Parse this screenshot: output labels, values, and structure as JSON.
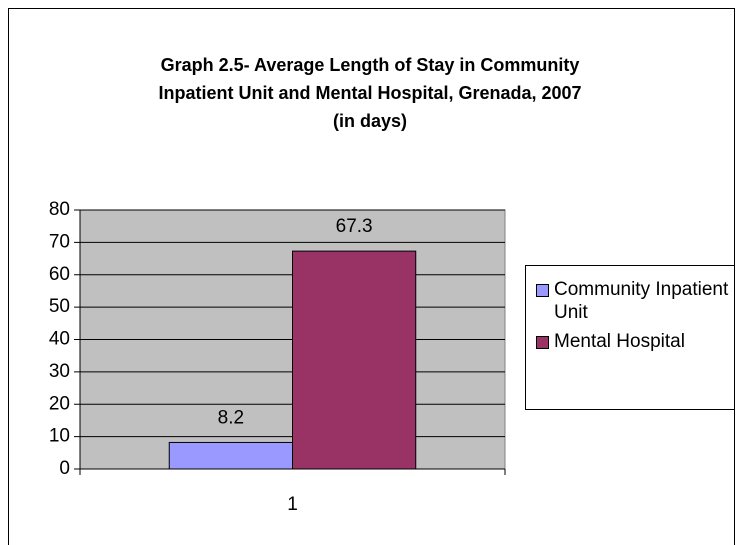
{
  "chart_data": {
    "type": "bar",
    "title": [
      "Graph 2.5- Average Length of Stay in Community",
      "Inpatient Unit and Mental Hospital, Grenada, 2007",
      "(in days)"
    ],
    "categories": [
      "1"
    ],
    "series": [
      {
        "name": "Community Inpatient Unit",
        "color": "#9999ff",
        "values": [
          8.2
        ]
      },
      {
        "name": "Mental Hospital",
        "color": "#993366",
        "values": [
          67.3
        ]
      }
    ],
    "ylim": [
      0,
      80
    ],
    "yticks": [
      0,
      10,
      20,
      30,
      40,
      50,
      60,
      70,
      80
    ],
    "grid": true,
    "legend": "right"
  }
}
